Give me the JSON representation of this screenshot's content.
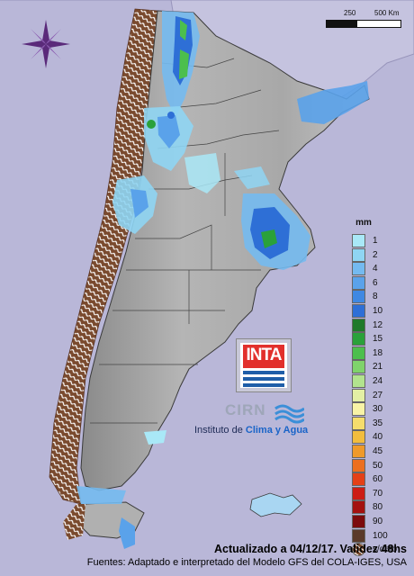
{
  "map": {
    "basemap": "shaded-relief-argentina",
    "no_data_pattern": "brown-hatched-andes",
    "colors": {
      "background": "#b9b7d8",
      "land": "#9a9a9a",
      "border": "#444444",
      "rain_light": "#a9d6f2",
      "rain_mid": "#5aa2ea",
      "rain_heavy": "#2e6fd6",
      "rain_green": "#2aa13a",
      "no_data": "#7a4a2e"
    }
  },
  "compass": {
    "icon": "compass-rose-icon"
  },
  "scale_bar": {
    "labels": [
      "250",
      "500 Km"
    ]
  },
  "legend": {
    "unit": "mm",
    "items": [
      {
        "label": "1",
        "color": "#a9e8f7"
      },
      {
        "label": "2",
        "color": "#8fd5f3"
      },
      {
        "label": "4",
        "color": "#74baf0"
      },
      {
        "label": "6",
        "color": "#5aa2ea"
      },
      {
        "label": "8",
        "color": "#3f88e2"
      },
      {
        "label": "10",
        "color": "#2e6fd6"
      },
      {
        "label": "12",
        "color": "#1f7a2a"
      },
      {
        "label": "15",
        "color": "#2aa13a"
      },
      {
        "label": "18",
        "color": "#4cbf4d"
      },
      {
        "label": "21",
        "color": "#7fd36b"
      },
      {
        "label": "24",
        "color": "#b2e38e"
      },
      {
        "label": "27",
        "color": "#e3efa4"
      },
      {
        "label": "30",
        "color": "#f8f3a6"
      },
      {
        "label": "35",
        "color": "#f5dd6c"
      },
      {
        "label": "40",
        "color": "#f2bd3d"
      },
      {
        "label": "45",
        "color": "#ef9a2a"
      },
      {
        "label": "50",
        "color": "#ec6f1f"
      },
      {
        "label": "60",
        "color": "#e44017"
      },
      {
        "label": "70",
        "color": "#cc1c14"
      },
      {
        "label": "80",
        "color": "#a4110f"
      },
      {
        "label": "90",
        "color": "#7c0b0c"
      },
      {
        "label": "100",
        "color": "#5a3a2a"
      },
      {
        "label": "s/dato",
        "color": "#7a4a2e",
        "pattern": true
      }
    ]
  },
  "logos": {
    "inta": "INTA",
    "cirn": "CIRN",
    "institute_prefix": "Instituto de ",
    "institute_accent": "Clima y Agua"
  },
  "footer": {
    "updated": "Actualizado a 04/12/17. Validez 48hs",
    "sources": "Fuentes: Adaptado e interpretado del Modelo GFS del COLA-IGES, USA"
  }
}
